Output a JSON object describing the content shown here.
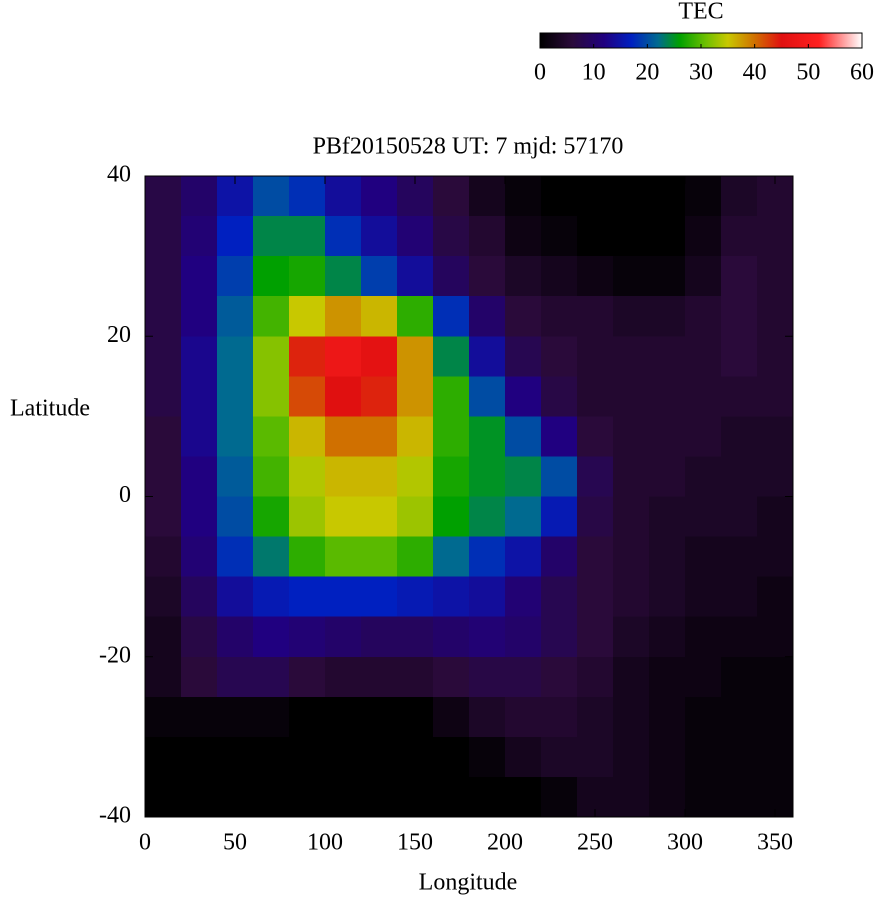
{
  "chart_data": {
    "type": "heatmap",
    "title": "PBf20150528  UT: 7  mjd: 57170",
    "xlabel": "Longitude",
    "ylabel": "Latitude",
    "colorbar_label": "TEC",
    "xlim": [
      0,
      360
    ],
    "ylim": [
      -40,
      40
    ],
    "clim": [
      0,
      60
    ],
    "xticks": [
      0,
      50,
      100,
      150,
      200,
      250,
      300,
      350
    ],
    "yticks": [
      -40,
      -20,
      0,
      20,
      40
    ],
    "cticks": [
      0,
      10,
      20,
      30,
      40,
      50,
      60
    ],
    "colorscale": [
      [
        0,
        "#000000"
      ],
      [
        6,
        "#2a0a3a"
      ],
      [
        12,
        "#200080"
      ],
      [
        17,
        "#0020c0"
      ],
      [
        22,
        "#006a90"
      ],
      [
        26,
        "#00a000"
      ],
      [
        31,
        "#70c000"
      ],
      [
        35,
        "#c8c800"
      ],
      [
        40,
        "#d07000"
      ],
      [
        45,
        "#e01010"
      ],
      [
        52,
        "#ff2020"
      ],
      [
        60,
        "#ffffff"
      ]
    ],
    "x": [
      10,
      30,
      50,
      70,
      90,
      110,
      130,
      150,
      170,
      190,
      210,
      230,
      250,
      270,
      290,
      310,
      330,
      350
    ],
    "y": [
      37.5,
      32.5,
      27.5,
      22.5,
      17.5,
      12.5,
      7.5,
      2.5,
      -2.5,
      -7.5,
      -12.5,
      -17.5,
      -22.5,
      -27.5,
      -32.5,
      -37.5
    ],
    "z": [
      [
        7,
        10,
        15,
        20,
        18,
        14,
        12,
        9,
        6,
        3,
        1,
        0,
        0,
        0,
        0,
        1,
        4,
        5
      ],
      [
        7,
        11,
        17,
        24,
        24,
        18,
        14,
        11,
        7,
        5,
        2,
        1,
        0,
        0,
        0,
        2,
        5,
        5
      ],
      [
        7,
        12,
        19,
        26,
        27,
        24,
        19,
        14,
        9,
        6,
        4,
        3,
        2,
        1,
        1,
        3,
        6,
        5
      ],
      [
        7,
        12,
        21,
        29,
        35,
        38,
        36,
        28,
        18,
        10,
        6,
        5,
        5,
        4,
        4,
        5,
        6,
        5
      ],
      [
        7,
        13,
        22,
        32,
        44,
        48,
        46,
        38,
        24,
        14,
        8,
        6,
        5,
        5,
        5,
        5,
        6,
        5
      ],
      [
        7,
        13,
        22,
        32,
        42,
        45,
        44,
        38,
        28,
        20,
        12,
        7,
        5,
        5,
        5,
        5,
        5,
        5
      ],
      [
        6,
        13,
        22,
        30,
        36,
        40,
        40,
        36,
        28,
        25,
        20,
        12,
        6,
        5,
        5,
        5,
        4,
        4
      ],
      [
        6,
        12,
        21,
        29,
        34,
        36,
        36,
        34,
        27,
        25,
        24,
        20,
        8,
        5,
        5,
        4,
        4,
        4
      ],
      [
        6,
        12,
        20,
        27,
        33,
        35,
        35,
        33,
        26,
        24,
        22,
        16,
        7,
        5,
        4,
        4,
        4,
        3
      ],
      [
        5,
        11,
        18,
        23,
        28,
        30,
        30,
        28,
        22,
        18,
        15,
        10,
        6,
        5,
        4,
        3,
        3,
        3
      ],
      [
        4,
        9,
        14,
        16,
        17,
        17,
        17,
        16,
        15,
        14,
        11,
        8,
        6,
        5,
        4,
        3,
        3,
        2
      ],
      [
        3,
        7,
        10,
        12,
        11,
        10,
        9,
        9,
        10,
        11,
        10,
        8,
        6,
        4,
        3,
        2,
        2,
        2
      ],
      [
        3,
        6,
        8,
        8,
        6,
        5,
        5,
        5,
        6,
        7,
        7,
        6,
        5,
        3,
        2,
        2,
        1,
        1
      ],
      [
        1,
        1,
        1,
        1,
        0,
        0,
        0,
        0,
        2,
        4,
        5,
        5,
        4,
        3,
        2,
        1,
        1,
        1
      ],
      [
        0,
        0,
        0,
        0,
        0,
        0,
        0,
        0,
        0,
        1,
        3,
        4,
        4,
        3,
        2,
        1,
        1,
        1
      ],
      [
        0,
        0,
        0,
        0,
        0,
        0,
        0,
        0,
        0,
        0,
        0,
        1,
        3,
        3,
        2,
        1,
        1,
        1
      ]
    ]
  }
}
